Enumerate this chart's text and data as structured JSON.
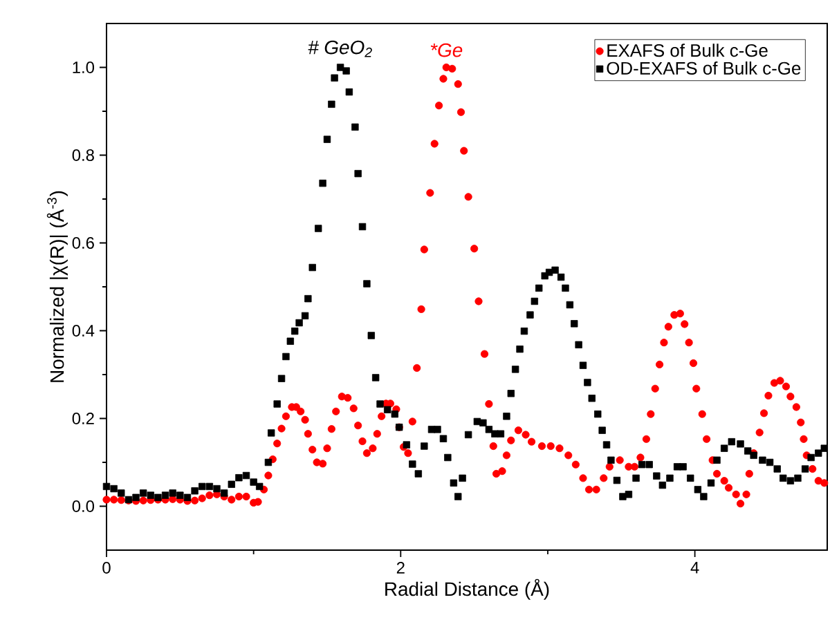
{
  "chart_data": {
    "type": "scatter",
    "xlabel": "Radial Distance (Å)",
    "ylabel": "Normalized |χ(R)| (Å$^{-3}$)",
    "xlim": [
      0,
      4.9
    ],
    "ylim": [
      -0.1,
      1.1
    ],
    "xticks": [
      0,
      2,
      4
    ],
    "yticks": [
      {
        "value": 0,
        "label": "0.0"
      },
      {
        "value": 0.2,
        "label": "0.2"
      },
      {
        "value": 0.4,
        "label": "0.4"
      },
      {
        "value": 0.6,
        "label": "0.6"
      },
      {
        "value": 0.8,
        "label": "0.8"
      },
      {
        "value": 1,
        "label": "1.0"
      }
    ],
    "legend": "top right",
    "grid": false,
    "annotations": [
      {
        "text": "# GeO$_{2}$",
        "x": 1.59,
        "y": 1.0
      },
      {
        "text": "*Ge",
        "x": 2.31,
        "y": 1.0
      }
    ],
    "series": [
      {
        "name": "EXAFS of Bulk c-Ge",
        "color": "#ff0000",
        "marker": "circle",
        "x": [
          0,
          0.05,
          0.1,
          0.15,
          0.2,
          0.25,
          0.3,
          0.35,
          0.4,
          0.45,
          0.5,
          0.55,
          0.6,
          0.65,
          0.7,
          0.75,
          0.8,
          0.85,
          0.9,
          0.95,
          1.0,
          1.03,
          1.07,
          1.1,
          1.13,
          1.16,
          1.19,
          1.22,
          1.26,
          1.29,
          1.32,
          1.35,
          1.37,
          1.4,
          1.43,
          1.47,
          1.5,
          1.53,
          1.56,
          1.6,
          1.64,
          1.68,
          1.71,
          1.74,
          1.77,
          1.81,
          1.84,
          1.87,
          1.9,
          1.93,
          1.97,
          1.99,
          2.02,
          2.05,
          2.08,
          2.11,
          2.14,
          2.16,
          2.2,
          2.23,
          2.26,
          2.29,
          2.31,
          2.35,
          2.39,
          2.41,
          2.43,
          2.46,
          2.5,
          2.53,
          2.57,
          2.6,
          2.63,
          2.65,
          2.69,
          2.72,
          2.75,
          2.8,
          2.85,
          2.89,
          2.96,
          3.02,
          3.08,
          3.14,
          3.19,
          3.24,
          3.28,
          3.33,
          3.38,
          3.42,
          3.49,
          3.55,
          3.59,
          3.63,
          3.67,
          3.7,
          3.73,
          3.76,
          3.79,
          3.82,
          3.86,
          3.9,
          3.93,
          3.96,
          3.99,
          4.01,
          4.05,
          4.08,
          4.12,
          4.15,
          4.2,
          4.23,
          4.28,
          4.31,
          4.35,
          4.37,
          4.4,
          4.44,
          4.47,
          4.5,
          4.54,
          4.58,
          4.62,
          4.65,
          4.69,
          4.72,
          4.74,
          4.76,
          4.8,
          4.84,
          4.88
        ],
        "values": [
          0.015,
          0.015,
          0.014,
          0.013,
          0.012,
          0.013,
          0.014,
          0.015,
          0.015,
          0.016,
          0.015,
          0.012,
          0.013,
          0.018,
          0.025,
          0.027,
          0.022,
          0.015,
          0.022,
          0.022,
          0.008,
          0.01,
          0.038,
          0.07,
          0.107,
          0.143,
          0.177,
          0.205,
          0.226,
          0.226,
          0.216,
          0.197,
          0.165,
          0.129,
          0.1,
          0.097,
          0.132,
          0.176,
          0.216,
          0.25,
          0.247,
          0.223,
          0.184,
          0.148,
          0.121,
          0.132,
          0.165,
          0.205,
          0.234,
          0.234,
          0.221,
          0.18,
          0.135,
          0.121,
          0.193,
          0.315,
          0.449,
          0.585,
          0.714,
          0.826,
          0.913,
          0.974,
          1.0,
          0.997,
          0.962,
          0.898,
          0.81,
          0.705,
          0.587,
          0.467,
          0.347,
          0.233,
          0.137,
          0.074,
          0.08,
          0.116,
          0.15,
          0.173,
          0.163,
          0.147,
          0.137,
          0.137,
          0.132,
          0.116,
          0.095,
          0.064,
          0.038,
          0.038,
          0.064,
          0.09,
          0.105,
          0.09,
          0.09,
          0.111,
          0.153,
          0.21,
          0.268,
          0.323,
          0.373,
          0.409,
          0.436,
          0.439,
          0.415,
          0.373,
          0.326,
          0.268,
          0.21,
          0.153,
          0.105,
          0.074,
          0.058,
          0.042,
          0.027,
          0.006,
          0.027,
          0.074,
          0.121,
          0.168,
          0.212,
          0.252,
          0.281,
          0.286,
          0.273,
          0.25,
          0.226,
          0.191,
          0.153,
          0.116,
          0.085,
          0.058,
          0.053
        ]
      },
      {
        "name": "OD-EXAFS of Bulk c-Ge",
        "color": "#000000",
        "marker": "square",
        "x": [
          0,
          0.05,
          0.1,
          0.15,
          0.2,
          0.25,
          0.3,
          0.35,
          0.4,
          0.45,
          0.5,
          0.55,
          0.6,
          0.65,
          0.7,
          0.75,
          0.8,
          0.85,
          0.9,
          0.95,
          1.0,
          1.04,
          1.1,
          1.12,
          1.16,
          1.19,
          1.22,
          1.25,
          1.28,
          1.31,
          1.35,
          1.37,
          1.4,
          1.44,
          1.47,
          1.5,
          1.53,
          1.55,
          1.59,
          1.63,
          1.65,
          1.69,
          1.71,
          1.74,
          1.77,
          1.8,
          1.83,
          1.86,
          1.91,
          1.96,
          1.99,
          2.04,
          2.08,
          2.12,
          2.16,
          2.21,
          2.25,
          2.29,
          2.32,
          2.36,
          2.39,
          2.42,
          2.46,
          2.52,
          2.56,
          2.6,
          2.64,
          2.68,
          2.72,
          2.75,
          2.78,
          2.81,
          2.84,
          2.88,
          2.91,
          2.94,
          2.98,
          3.01,
          3.05,
          3.09,
          3.12,
          3.15,
          3.18,
          3.21,
          3.24,
          3.27,
          3.3,
          3.34,
          3.37,
          3.4,
          3.43,
          3.47,
          3.51,
          3.55,
          3.6,
          3.64,
          3.69,
          3.74,
          3.78,
          3.83,
          3.88,
          3.92,
          3.97,
          4.02,
          4.06,
          4.11,
          4.15,
          4.2,
          4.25,
          4.31,
          4.36,
          4.4,
          4.46,
          4.51,
          4.56,
          4.6,
          4.65,
          4.7,
          4.75,
          4.79,
          4.84,
          4.88
        ],
        "values": [
          0.045,
          0.04,
          0.03,
          0.015,
          0.02,
          0.03,
          0.025,
          0.02,
          0.025,
          0.03,
          0.025,
          0.02,
          0.035,
          0.045,
          0.045,
          0.04,
          0.03,
          0.05,
          0.065,
          0.07,
          0.055,
          0.045,
          0.1,
          0.167,
          0.233,
          0.291,
          0.341,
          0.376,
          0.399,
          0.418,
          0.434,
          0.473,
          0.544,
          0.633,
          0.736,
          0.836,
          0.916,
          0.976,
          1.0,
          0.992,
          0.944,
          0.864,
          0.758,
          0.637,
          0.507,
          0.389,
          0.293,
          0.233,
          0.22,
          0.21,
          0.18,
          0.14,
          0.096,
          0.074,
          0.137,
          0.175,
          0.175,
          0.154,
          0.111,
          0.053,
          0.022,
          0.064,
          0.163,
          0.193,
          0.19,
          0.175,
          0.165,
          0.165,
          0.205,
          0.257,
          0.312,
          0.358,
          0.399,
          0.436,
          0.467,
          0.497,
          0.525,
          0.533,
          0.538,
          0.522,
          0.497,
          0.459,
          0.416,
          0.368,
          0.321,
          0.282,
          0.246,
          0.21,
          0.173,
          0.14,
          0.105,
          0.059,
          0.022,
          0.027,
          0.064,
          0.095,
          0.095,
          0.069,
          0.048,
          0.064,
          0.09,
          0.09,
          0.064,
          0.038,
          0.022,
          0.053,
          0.105,
          0.132,
          0.147,
          0.142,
          0.126,
          0.116,
          0.105,
          0.1,
          0.085,
          0.064,
          0.058,
          0.064,
          0.085,
          0.111,
          0.121,
          0.132
        ]
      }
    ]
  }
}
